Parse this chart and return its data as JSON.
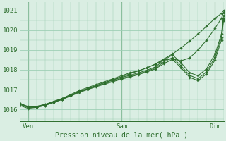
{
  "title": "",
  "xlabel": "Pression niveau de la mer( hPa )",
  "ylabel": "",
  "bg_color": "#daeee3",
  "grid_color": "#9ecfb5",
  "line_color": "#2d6e2d",
  "marker_color": "#2d6e2d",
  "text_color": "#2d6e2d",
  "xlim": [
    0,
    48
  ],
  "ylim": [
    1015.4,
    1021.4
  ],
  "yticks": [
    1016,
    1017,
    1018,
    1019,
    1020,
    1021
  ],
  "xtick_positions": [
    2,
    24,
    46
  ],
  "xtick_labels": [
    "Ven",
    "Sam",
    "Dim"
  ],
  "vline_positions": [
    2,
    24,
    46
  ],
  "series": [
    [
      1016.2,
      1016.05,
      1016.1,
      1016.2,
      1016.35,
      1016.5,
      1016.7,
      1016.9,
      1017.05,
      1017.2,
      1017.35,
      1017.5,
      1017.65,
      1017.8,
      1017.95,
      1018.1,
      1018.3,
      1018.55,
      1018.8,
      1019.1,
      1019.45,
      1019.8,
      1020.2,
      1020.6,
      1020.85,
      1021.0
    ],
    [
      1016.25,
      1016.1,
      1016.15,
      1016.25,
      1016.4,
      1016.55,
      1016.75,
      1016.95,
      1017.1,
      1017.25,
      1017.4,
      1017.55,
      1017.7,
      1017.85,
      1017.95,
      1018.1,
      1018.28,
      1018.5,
      1018.55,
      1018.45,
      1018.6,
      1019.0,
      1019.5,
      1020.1,
      1020.6,
      1020.9
    ],
    [
      1016.3,
      1016.15,
      1016.15,
      1016.25,
      1016.4,
      1016.55,
      1016.72,
      1016.9,
      1017.05,
      1017.2,
      1017.35,
      1017.48,
      1017.62,
      1017.72,
      1017.85,
      1017.98,
      1018.15,
      1018.5,
      1018.75,
      1018.35,
      1017.85,
      1017.7,
      1018.05,
      1018.8,
      1019.8,
      1020.75
    ],
    [
      1016.3,
      1016.12,
      1016.12,
      1016.22,
      1016.37,
      1016.52,
      1016.7,
      1016.88,
      1017.02,
      1017.17,
      1017.3,
      1017.43,
      1017.57,
      1017.67,
      1017.8,
      1017.93,
      1018.1,
      1018.4,
      1018.62,
      1018.2,
      1017.72,
      1017.55,
      1017.9,
      1018.65,
      1019.65,
      1020.6
    ],
    [
      1016.32,
      1016.1,
      1016.1,
      1016.2,
      1016.35,
      1016.5,
      1016.67,
      1016.85,
      1017.0,
      1017.14,
      1017.27,
      1017.4,
      1017.53,
      1017.63,
      1017.76,
      1017.89,
      1018.05,
      1018.32,
      1018.52,
      1018.1,
      1017.62,
      1017.45,
      1017.8,
      1018.5,
      1019.5,
      1020.5
    ]
  ],
  "x_values": [
    0,
    2,
    4,
    6,
    8,
    10,
    12,
    14,
    16,
    18,
    20,
    22,
    24,
    26,
    28,
    30,
    32,
    34,
    36,
    38,
    40,
    42,
    44,
    46,
    47.5,
    48
  ]
}
